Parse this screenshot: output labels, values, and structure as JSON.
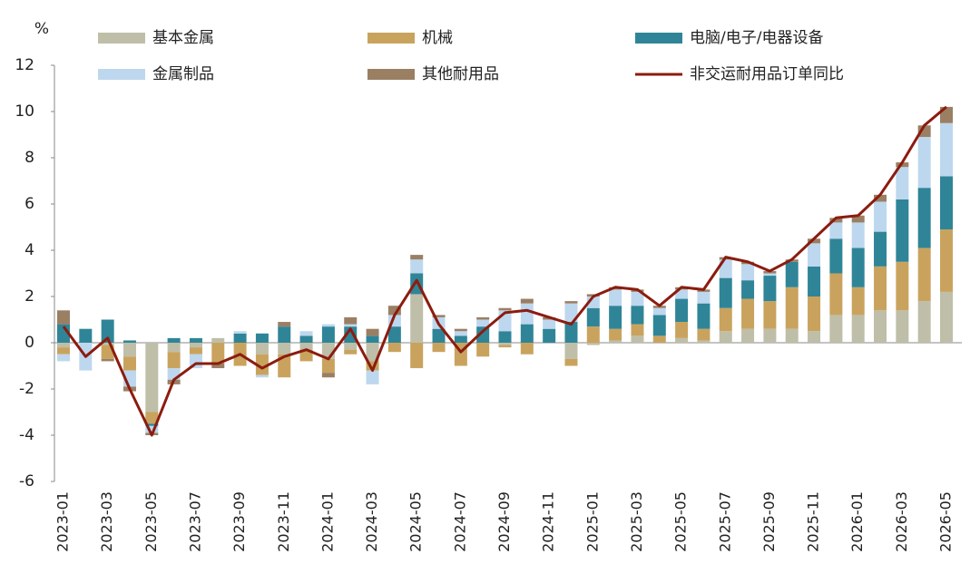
{
  "chart_data": {
    "type": "bar",
    "stacked": true,
    "y_label": "%",
    "categories": [
      "2023-01",
      null,
      "2023-03",
      null,
      "2023-05",
      null,
      "2023-07",
      null,
      "2023-09",
      null,
      "2023-11",
      null,
      "2024-01",
      null,
      "2024-03",
      null,
      "2024-05",
      null,
      "2024-07",
      null,
      "2024-09",
      null,
      "2024-11",
      null,
      "2025-01",
      null,
      "2025-03",
      null,
      "2025-05",
      null,
      "2025-07",
      null,
      "2025-09",
      null,
      "2025-11",
      null,
      "2026-01",
      null,
      "2026-03",
      null,
      "2026-05"
    ],
    "series": [
      {
        "name": "基本金属",
        "color": "#bfbea8",
        "values": [
          -0.2,
          0,
          -0.1,
          -0.6,
          -3.0,
          -0.4,
          -0.2,
          0.2,
          0,
          -0.5,
          -0.5,
          -0.3,
          -0.7,
          -0.3,
          -0.8,
          0,
          2.1,
          0,
          0,
          0,
          -0.1,
          0,
          0,
          -0.7,
          -0.1,
          0.1,
          0.3,
          0,
          0.2,
          0.1,
          0.5,
          0.6,
          0.6,
          0.6,
          0.5,
          1.2,
          1.2,
          1.4,
          1.4,
          1.8,
          2.2
        ]
      },
      {
        "name": "机械",
        "color": "#c9a35e",
        "values": [
          -0.3,
          0,
          -0.6,
          -0.6,
          -0.5,
          -0.7,
          -0.3,
          -0.9,
          -1.0,
          -0.9,
          -1.0,
          -0.5,
          -0.6,
          -0.2,
          -0.4,
          -0.4,
          -1.1,
          -0.4,
          -1.0,
          -0.6,
          -0.1,
          -0.5,
          0,
          -0.3,
          0.7,
          0.5,
          0.5,
          0.3,
          0.7,
          0.5,
          1.0,
          1.3,
          1.2,
          1.8,
          1.5,
          1.8,
          1.2,
          1.9,
          2.1,
          2.3,
          2.7
        ]
      },
      {
        "name": "电脑/电子/电器设备",
        "color": "#2f8597",
        "values": [
          0.8,
          0.6,
          1.0,
          0.1,
          -0.1,
          0.2,
          0.2,
          0,
          0.4,
          0.4,
          0.7,
          0.3,
          0.7,
          0.7,
          0.3,
          0.7,
          0.9,
          0.6,
          0.3,
          0.7,
          0.5,
          0.8,
          0.6,
          0.9,
          0.8,
          1.0,
          0.8,
          0.9,
          1.0,
          1.1,
          1.3,
          0.8,
          1.1,
          1.1,
          1.3,
          1.5,
          1.7,
          1.5,
          2.7,
          2.6,
          2.3
        ]
      },
      {
        "name": "金属制品",
        "color": "#bdd7ee",
        "values": [
          -0.3,
          -1.2,
          0,
          -0.7,
          -0.3,
          -0.5,
          -0.6,
          0,
          0.1,
          -0.1,
          0,
          0.2,
          0.1,
          0.1,
          -0.6,
          0.5,
          0.6,
          0.5,
          0.2,
          0.3,
          0.9,
          0.9,
          0.4,
          0.8,
          0.5,
          0.7,
          0.6,
          0.3,
          0.4,
          0.5,
          0.8,
          0.7,
          0.1,
          0,
          1.0,
          0.7,
          1.1,
          1.3,
          1.4,
          2.2,
          2.3
        ]
      },
      {
        "name": "其他耐用品",
        "color": "#9b7f63",
        "values": [
          0.6,
          0,
          -0.1,
          -0.2,
          -0.1,
          -0.2,
          0,
          -0.2,
          0,
          0,
          0.2,
          0,
          -0.2,
          0.3,
          0.3,
          0.4,
          0.2,
          0.1,
          0.1,
          0.1,
          0.1,
          0.2,
          0.1,
          0.1,
          0.1,
          0.1,
          0.1,
          0.1,
          0.1,
          0.1,
          0.1,
          0.1,
          0.1,
          0.1,
          0.2,
          0.2,
          0.3,
          0.3,
          0.2,
          0.5,
          0.7
        ]
      },
      {
        "name": "非交运耐用品订单同比",
        "type": "line",
        "color": "#8b1c0f",
        "values": [
          0.7,
          -0.6,
          0.2,
          -2.0,
          -4.0,
          -1.6,
          -0.9,
          -0.9,
          -0.5,
          -1.1,
          -0.6,
          -0.3,
          -0.7,
          0.6,
          -1.2,
          1.2,
          2.7,
          0.8,
          -0.4,
          0.5,
          1.3,
          1.4,
          1.1,
          0.8,
          2.0,
          2.4,
          2.3,
          1.6,
          2.4,
          2.3,
          3.7,
          3.5,
          3.1,
          3.6,
          4.5,
          5.4,
          5.5,
          6.4,
          7.8,
          9.4,
          10.2
        ]
      }
    ],
    "ylim": [
      -6,
      12
    ],
    "yticks": [
      -6,
      -4,
      -2,
      0,
      2,
      4,
      6,
      8,
      10,
      12
    ],
    "grid": false
  }
}
